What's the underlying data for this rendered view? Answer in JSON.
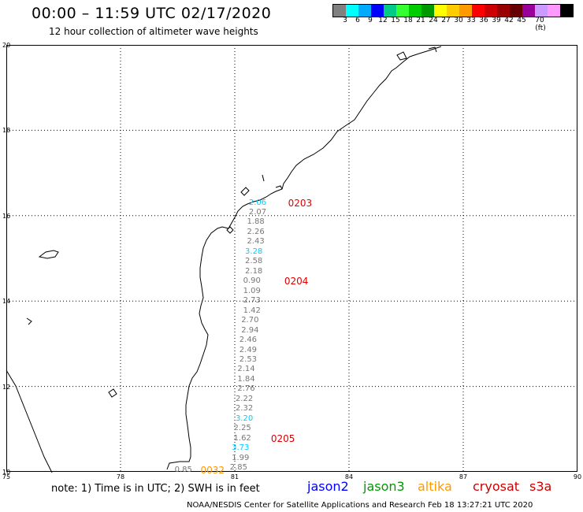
{
  "header": {
    "title": "00:00 – 11:59 UTC 02/17/2020",
    "subtitle": "12 hour collection of altimeter wave heights"
  },
  "colorbar": {
    "colors": [
      "#808080",
      "#00ffff",
      "#00aaff",
      "#0000ff",
      "#00cc88",
      "#33ff33",
      "#00cc00",
      "#009900",
      "#ffff00",
      "#ffcc00",
      "#ff9900",
      "#ff0000",
      "#cc0000",
      "#990000",
      "#660000",
      "#990099",
      "#cc99ff",
      "#ff99ff",
      "#000000"
    ],
    "labels": [
      "3",
      "6",
      "9",
      "12",
      "15",
      "18",
      "21",
      "24",
      "27",
      "30",
      "33",
      "36",
      "39",
      "42",
      "45",
      "70 (ft)"
    ]
  },
  "map": {
    "lon_range": [
      75,
      90
    ],
    "lat_range": [
      10,
      20
    ],
    "lon_ticks": [
      "75",
      "78",
      "81",
      "84",
      "87",
      "90"
    ],
    "lat_ticks": [
      "10",
      "12",
      "14",
      "16",
      "18",
      "20"
    ],
    "grid": "dotted"
  },
  "observations": [
    {
      "lon": 81.6,
      "lat": 16.3,
      "value": "2.06",
      "color": "#00ccff"
    },
    {
      "lon": 81.6,
      "lat": 16.07,
      "value": "2.07",
      "color": "#777777"
    },
    {
      "lon": 81.55,
      "lat": 15.84,
      "value": "1.88",
      "color": "#777777"
    },
    {
      "lon": 81.55,
      "lat": 15.61,
      "value": "2.26",
      "color": "#777777"
    },
    {
      "lon": 81.55,
      "lat": 15.38,
      "value": "2.43",
      "color": "#777777"
    },
    {
      "lon": 81.5,
      "lat": 15.15,
      "value": "3.28",
      "color": "#00ccff"
    },
    {
      "lon": 81.5,
      "lat": 14.92,
      "value": "2.58",
      "color": "#777777"
    },
    {
      "lon": 81.5,
      "lat": 14.69,
      "value": "2.18",
      "color": "#777777"
    },
    {
      "lon": 81.45,
      "lat": 14.46,
      "value": "0.90",
      "color": "#777777"
    },
    {
      "lon": 81.45,
      "lat": 14.23,
      "value": "1.09",
      "color": "#777777"
    },
    {
      "lon": 81.45,
      "lat": 14.0,
      "value": "2.73",
      "color": "#777777"
    },
    {
      "lon": 81.45,
      "lat": 13.77,
      "value": "1.42",
      "color": "#777777"
    },
    {
      "lon": 81.4,
      "lat": 13.54,
      "value": "2.70",
      "color": "#777777"
    },
    {
      "lon": 81.4,
      "lat": 13.31,
      "value": "2.94",
      "color": "#777777"
    },
    {
      "lon": 81.35,
      "lat": 13.08,
      "value": "2.46",
      "color": "#777777"
    },
    {
      "lon": 81.35,
      "lat": 12.85,
      "value": "2.49",
      "color": "#777777"
    },
    {
      "lon": 81.35,
      "lat": 12.62,
      "value": "2.53",
      "color": "#777777"
    },
    {
      "lon": 81.3,
      "lat": 12.39,
      "value": "2.14",
      "color": "#777777"
    },
    {
      "lon": 81.3,
      "lat": 12.16,
      "value": "1.84",
      "color": "#777777"
    },
    {
      "lon": 81.3,
      "lat": 11.93,
      "value": "2.76",
      "color": "#777777"
    },
    {
      "lon": 81.25,
      "lat": 11.7,
      "value": "2.22",
      "color": "#777777"
    },
    {
      "lon": 81.25,
      "lat": 11.47,
      "value": "2.32",
      "color": "#777777"
    },
    {
      "lon": 81.25,
      "lat": 11.24,
      "value": "3.20",
      "color": "#00ccff"
    },
    {
      "lon": 81.2,
      "lat": 11.01,
      "value": "2.25",
      "color": "#777777"
    },
    {
      "lon": 81.2,
      "lat": 10.78,
      "value": "1.62",
      "color": "#777777"
    },
    {
      "lon": 81.15,
      "lat": 10.55,
      "value": "3.73",
      "color": "#00ccff"
    },
    {
      "lon": 81.15,
      "lat": 10.32,
      "value": "1.99",
      "color": "#777777"
    },
    {
      "lon": 81.1,
      "lat": 10.09,
      "value": "2.85",
      "color": "#777777"
    },
    {
      "lon": 79.65,
      "lat": 10.03,
      "value": "0.85",
      "color": "#777777"
    }
  ],
  "pass_labels": [
    {
      "lon": 82.4,
      "lat": 16.3,
      "text": "0203",
      "color": "#dd0000"
    },
    {
      "lon": 82.3,
      "lat": 14.46,
      "text": "0204",
      "color": "#dd0000"
    },
    {
      "lon": 81.95,
      "lat": 10.78,
      "text": "0205",
      "color": "#dd0000"
    },
    {
      "lon": 80.1,
      "lat": 10.03,
      "text": "0032",
      "color": "#ff9900"
    }
  ],
  "footer": {
    "note": "note:  1) Time is in UTC;  2) SWH is in feet",
    "legend": [
      {
        "text": "jason2",
        "color": "#0000ff"
      },
      {
        "text": "jason3",
        "color": "#009900"
      },
      {
        "text": "altika",
        "color": "#ff9900"
      },
      {
        "text": "cryosat",
        "color": "#cc0000"
      },
      {
        "text": "s3a",
        "color": "#cc0000"
      }
    ],
    "credit": "NOAA/NESDIS Center for Satellite Applications and Research     Feb 18 13:27:21 UTC 2020"
  }
}
